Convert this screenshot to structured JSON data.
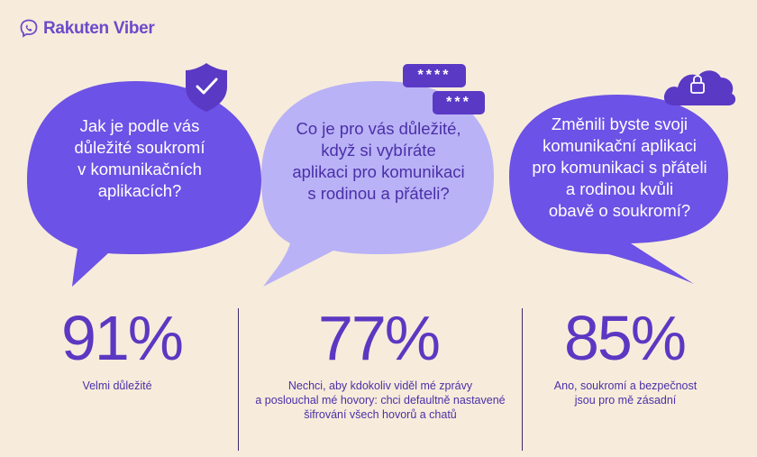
{
  "brand": {
    "name": "Rakuten Viber",
    "icon": "viber-phone-icon",
    "color": "#6b4bc9"
  },
  "colors": {
    "background": "#f7ecdb",
    "bubble_dark": "#6c52e6",
    "bubble_light": "#b9b2f6",
    "accent": "#5a39c5",
    "text": "#4b2fa8"
  },
  "cards": [
    {
      "icon": "shield-check-icon",
      "question": [
        "Jak je podle vás",
        "důležité soukromí",
        "v komunikačních",
        "aplikacích?"
      ],
      "percent": "91%",
      "caption": [
        "Velmi důležité"
      ]
    },
    {
      "icon": "password-badges",
      "badges": [
        "****",
        "***"
      ],
      "question": [
        "Co je pro vás důležité,",
        "když si vybíráte",
        "aplikaci pro komunikaci",
        "s rodinou a přáteli?"
      ],
      "percent": "77%",
      "caption": [
        "Nechci, aby kdokoliv viděl mé zprávy",
        "a poslouchal mé hovory: chci defaultně nastavené",
        "šifrování všech hovorů a chatů"
      ]
    },
    {
      "icon": "cloud-lock-icon",
      "question": [
        "Změnili byste svoji",
        "komunikační aplikaci",
        "pro komunikaci s přáteli",
        "a rodinou kvůli",
        "obavě o soukromí?"
      ],
      "percent": "85%",
      "caption": [
        "Ano, soukromí a bezpečnost",
        "jsou pro mě zásadní"
      ]
    }
  ]
}
